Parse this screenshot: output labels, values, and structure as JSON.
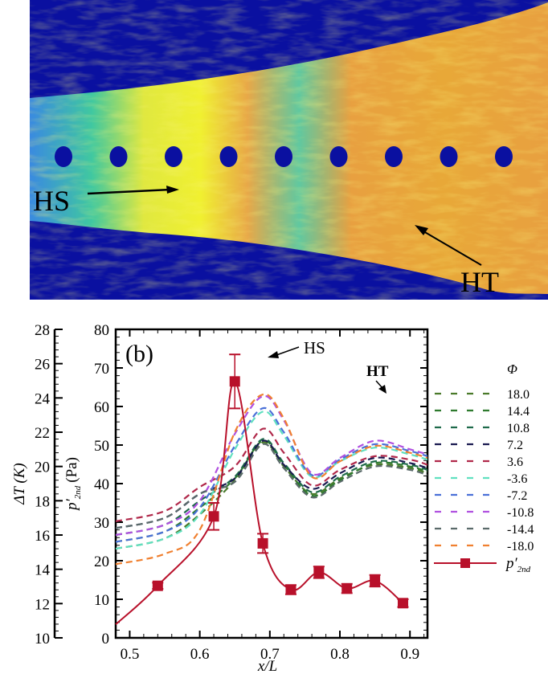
{
  "panel_a": {
    "labels": {
      "hs": "HS",
      "ht": "HT"
    },
    "hole_count": 9,
    "colors": {
      "background": "#0a10a0",
      "cool": "#3a8ae0",
      "mid": "#40c8a0",
      "warm": "#e8a040",
      "hot": "#f0f030"
    }
  },
  "chart_data": {
    "type": "line",
    "panel_label": "(b)",
    "xlabel": "x/L",
    "ylabel": "p'2nd (Pa)",
    "ylabel_main": "p′",
    "ylabel_sub": "2nd",
    "ylabel_unit": "(Pa)",
    "y2label": "ΔT (K)",
    "xlim": [
      0.48,
      0.925
    ],
    "ylim": [
      0,
      80
    ],
    "y2lim": [
      10,
      28
    ],
    "xticks": [
      "0.5",
      "0.6",
      "0.7",
      "0.8",
      "0.9"
    ],
    "yticks": [
      "0",
      "10",
      "20",
      "30",
      "40",
      "50",
      "60",
      "70",
      "80"
    ],
    "y2ticks": [
      "10",
      "12",
      "14",
      "16",
      "18",
      "20",
      "22",
      "24",
      "26",
      "28"
    ],
    "annotations": [
      {
        "text": "HS",
        "x": 0.69,
        "y": 72
      },
      {
        "text": "HT",
        "x": 0.85,
        "y": 62
      }
    ],
    "legend_title": "Φ",
    "legend_position": "right",
    "dT_series": [
      {
        "name": "18.0",
        "color": "#4a7a2a",
        "peak1": 21.4,
        "min": 18.4,
        "peak2": 20.1,
        "end": 19.6
      },
      {
        "name": "14.4",
        "color": "#2e7a2e",
        "peak1": 21.5,
        "min": 18.3,
        "peak2": 20.2,
        "end": 19.7
      },
      {
        "name": "10.8",
        "color": "#1e6a4a",
        "peak1": 21.6,
        "min": 18.5,
        "peak2": 20.3,
        "end": 19.8
      },
      {
        "name": "7.2",
        "color": "#1a1a50",
        "peak1": 21.5,
        "min": 18.7,
        "peak2": 20.5,
        "end": 19.9
      },
      {
        "name": "3.6",
        "color": "#b0284a",
        "peak1": 22.2,
        "min": 18.9,
        "peak2": 20.6,
        "end": 20.1
      },
      {
        "name": "-3.6",
        "color": "#60e0c0",
        "peak1": 23.2,
        "min": 19.4,
        "peak2": 21.1,
        "end": 20.4
      },
      {
        "name": "-7.2",
        "color": "#4a70d8",
        "peak1": 23.4,
        "min": 19.5,
        "peak2": 21.3,
        "end": 20.6
      },
      {
        "name": "-10.8",
        "color": "#b050e0",
        "peak1": 24.1,
        "min": 19.6,
        "peak2": 21.5,
        "end": 20.7
      },
      {
        "name": "-14.4",
        "color": "#5a6a6a",
        "peak1": 21.3,
        "min": 18.2,
        "peak2": 20.0,
        "end": 19.5
      },
      {
        "name": "-18.0",
        "color": "#f08030",
        "peak1": 24.2,
        "min": 19.4,
        "peak2": 21.2,
        "end": 20.5
      }
    ],
    "pressure_series": {
      "name": "p'2nd",
      "color": "#b8102a",
      "x": [
        0.54,
        0.62,
        0.65,
        0.69,
        0.73,
        0.77,
        0.81,
        0.85,
        0.89
      ],
      "y": [
        13.5,
        31.5,
        66.5,
        24.5,
        12.5,
        17.0,
        12.8,
        14.8,
        9.0
      ],
      "err": [
        0.8,
        3.5,
        7.0,
        2.5,
        1.2,
        1.5,
        1.2,
        1.5,
        1.0
      ]
    }
  }
}
